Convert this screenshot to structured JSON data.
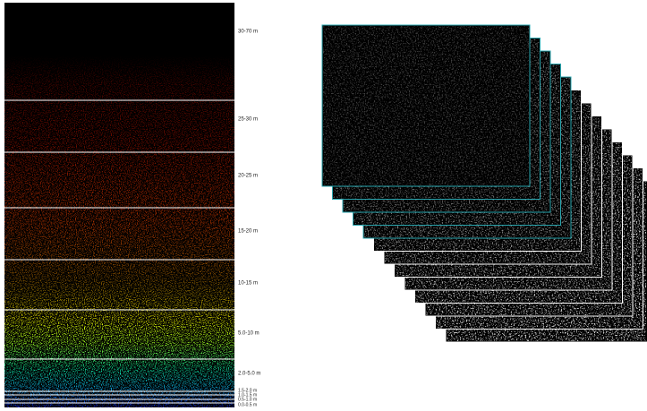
{
  "bands": [
    {
      "label": "30-70 m"
    },
    {
      "label": "25-30 m"
    },
    {
      "label": "20-25 m"
    },
    {
      "label": "15-20 m"
    },
    {
      "label": "10-15 m"
    },
    {
      "label": "5.0-10 m"
    },
    {
      "label": "2.0-5.0 m"
    },
    {
      "label": "1.5-2.0 m"
    },
    {
      "label": "1.0-1.5 m"
    },
    {
      "label": "0.5-1.0 m"
    },
    {
      "label": "0.0-0.5 m"
    }
  ]
}
